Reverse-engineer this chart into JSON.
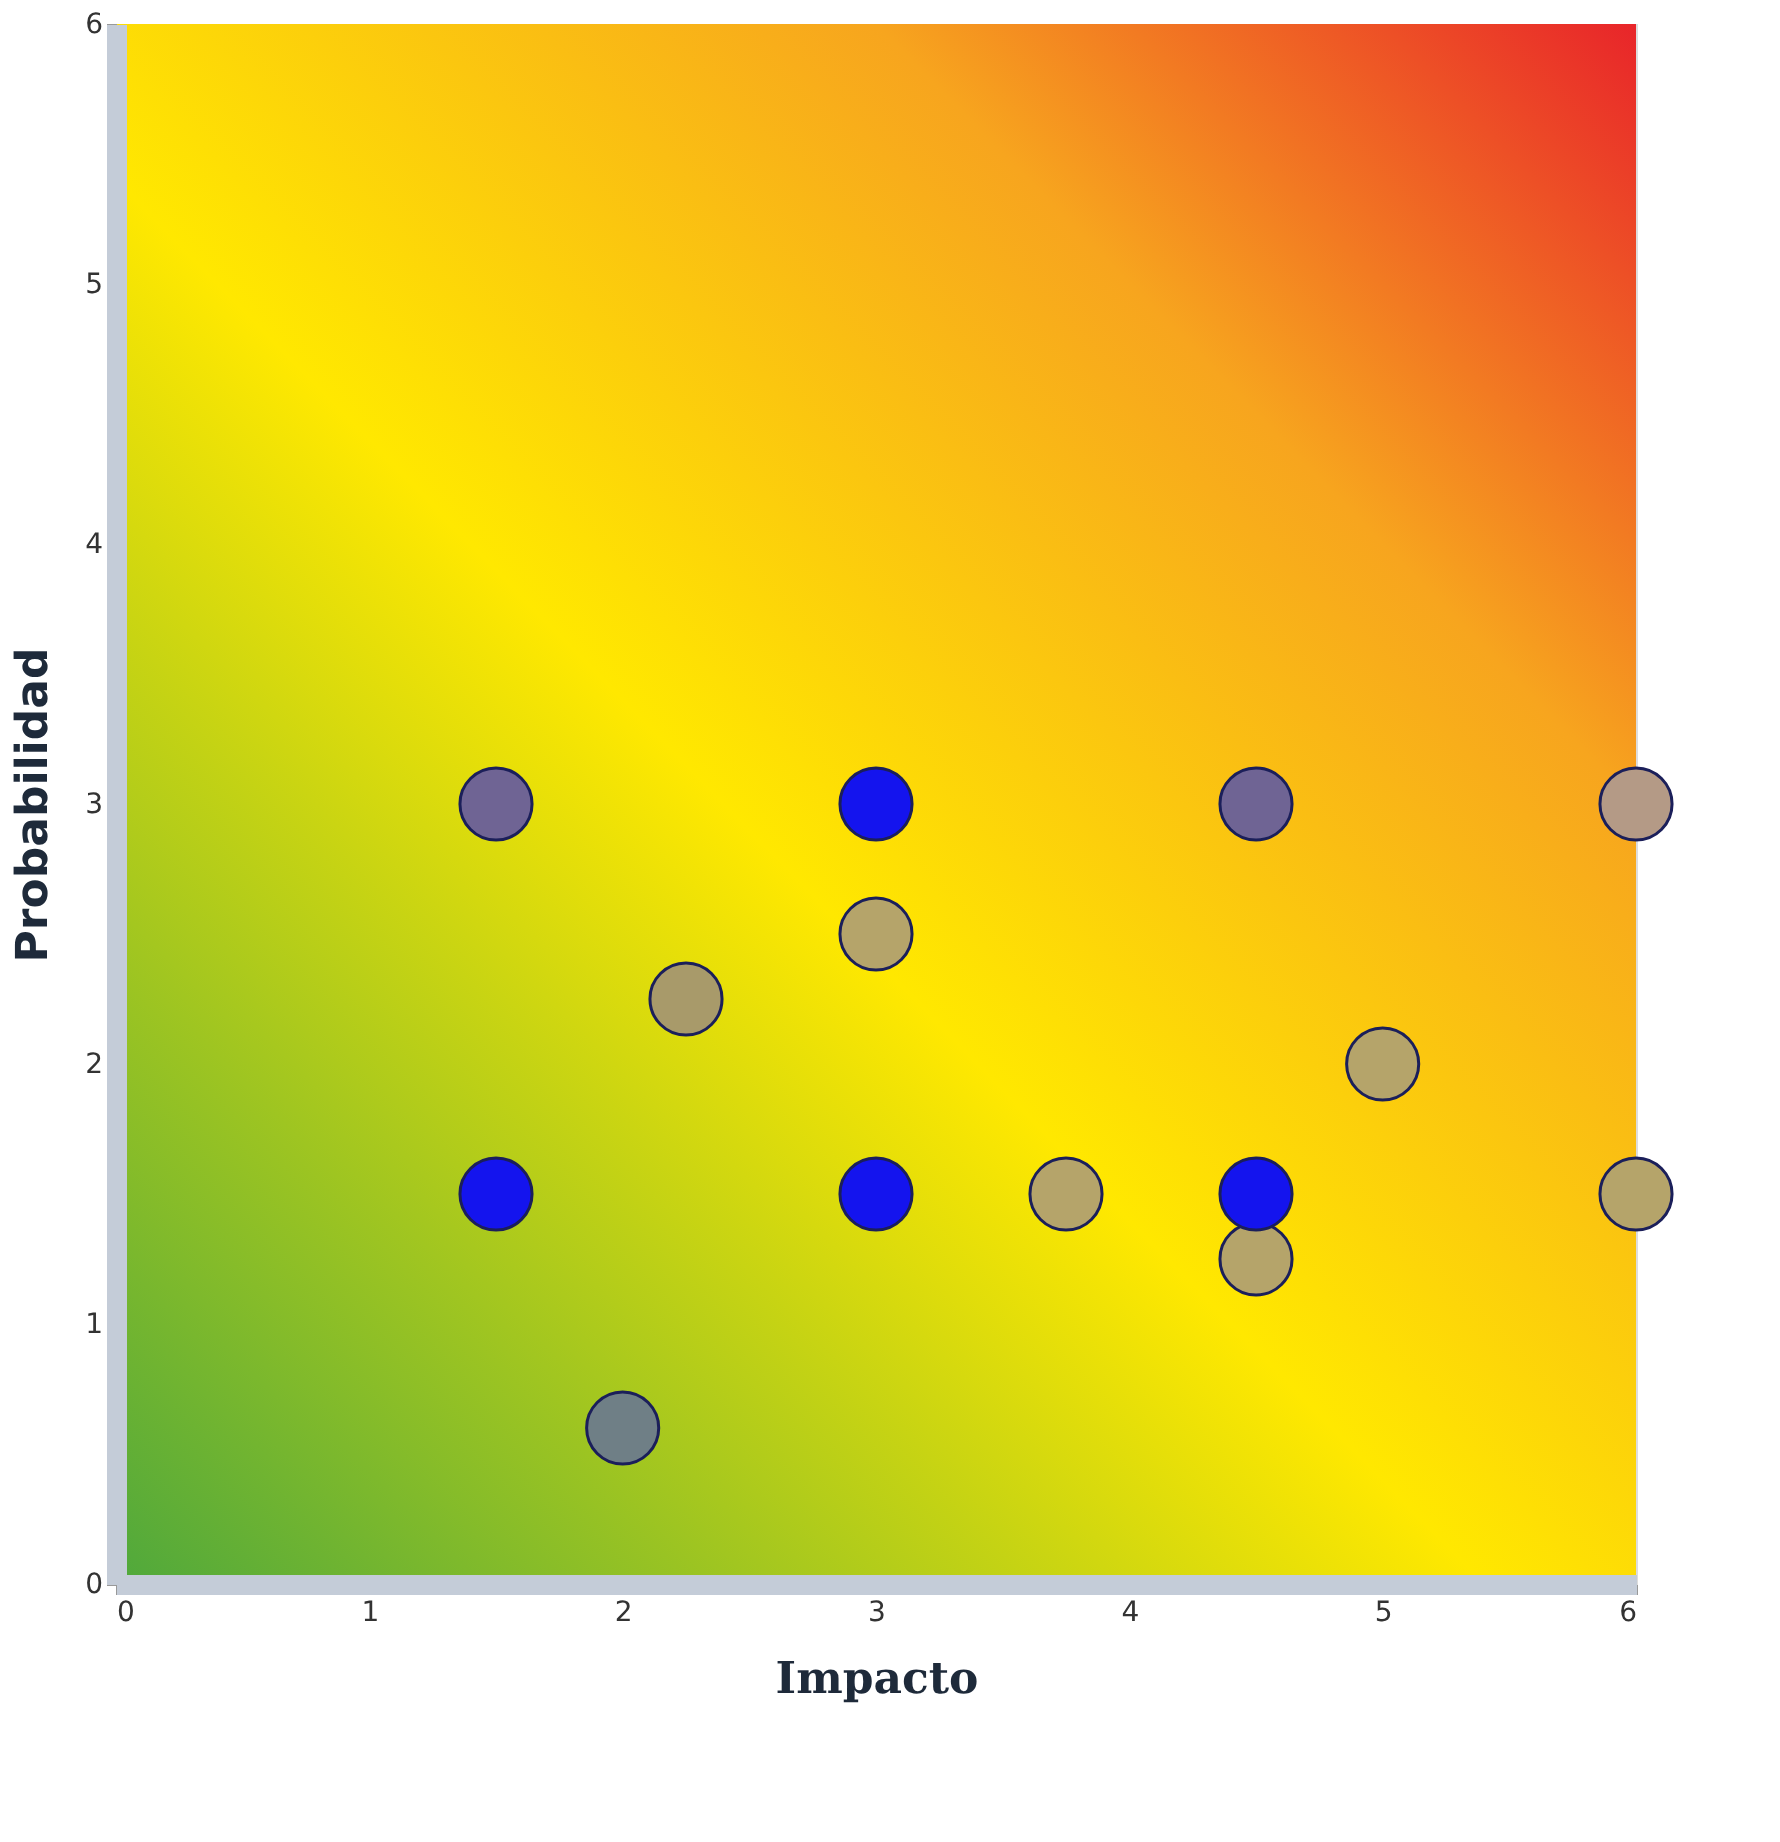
{
  "chart_data": {
    "type": "scatter",
    "xlabel": "Impacto",
    "ylabel": "Probabilidad",
    "x": [
      1.5,
      3,
      4.5,
      6,
      3,
      2.25,
      5,
      1.5,
      3,
      3.75,
      4.5,
      4.5,
      6,
      2
    ],
    "values": [
      3,
      3,
      3,
      3,
      2.5,
      2.25,
      2,
      1.5,
      1.5,
      1.5,
      1.25,
      1.5,
      1.5,
      0.6
    ],
    "colors": [
      "#6f6494",
      "#1414ee",
      "#6f6494",
      "#b49a86",
      "#b5a46a",
      "#a89a6a",
      "#b5a46a",
      "#1414ee",
      "#1414ee",
      "#b5a46a",
      "#b5a46a",
      "#1414ee",
      "#b5a46a",
      "#6f7f86"
    ],
    "xlim": [
      0,
      6
    ],
    "ylim": [
      0,
      6
    ],
    "xticks": [
      0,
      1,
      2,
      3,
      4,
      5,
      6
    ],
    "yticks": [
      0,
      1,
      2,
      3,
      4,
      5,
      6
    ],
    "marker": "circle",
    "grid": false,
    "legend": false
  }
}
